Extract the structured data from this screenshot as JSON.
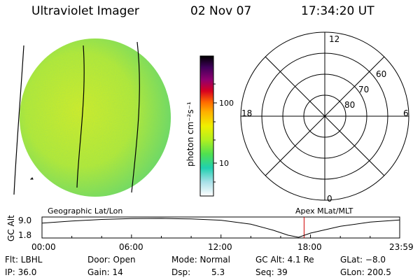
{
  "header": {
    "title": "Ultraviolet Imager",
    "date": "02 Nov 07",
    "time": "17:34:20 UT"
  },
  "colorbar": {
    "unit_label": "photon cm⁻²s⁻¹",
    "ticks": [
      "100",
      "10"
    ],
    "colors": [
      "#000000",
      "#3a0050",
      "#7a0080",
      "#c00060",
      "#e00000",
      "#ff6a00",
      "#ffd000",
      "#c8f000",
      "#60e060",
      "#20d0c0",
      "#b0e0e8",
      "#ffffff"
    ]
  },
  "polar_plot": {
    "mlt_labels": {
      "top": "12",
      "left": "18",
      "right": "6",
      "bottom": "0"
    },
    "lat_labels": [
      "60",
      "70",
      "80"
    ]
  },
  "timeline": {
    "left_label": "Geographic Lat/Lon",
    "right_label": "Apex MLat/MLT",
    "ylabel": "GC Alt",
    "y_ticks": [
      "9.0",
      "1.8"
    ],
    "x_ticks": [
      "00:00",
      "06:00",
      "12:00",
      "18:00",
      "23:59"
    ],
    "marker_time_hours": 17.57
  },
  "footer": {
    "row1": [
      "Flt: LBHL",
      "Door: Open",
      "Mode: Normal",
      "GC Alt: 4.1 Re",
      "GLat: −8.0"
    ],
    "row2": [
      "IP: 36.0",
      "Gain: 14",
      "Dsp:",
      "5.3",
      "Seq: 39",
      "GLon: 200.5"
    ]
  },
  "chart_data": {
    "type": "line",
    "xlabel": "",
    "ylabel": "GC Alt",
    "x": [
      0,
      2,
      4,
      6,
      8,
      10,
      12,
      14,
      15.5,
      16.5,
      17.2,
      18,
      20,
      22,
      23.98
    ],
    "y": [
      7.2,
      8.0,
      8.6,
      8.95,
      9.0,
      8.8,
      8.3,
      6.8,
      4.5,
      2.6,
      1.8,
      3.4,
      6.0,
      7.6,
      8.4
    ],
    "xlim": [
      0,
      23.98
    ],
    "ylim": [
      1.8,
      9.0
    ],
    "grid": false
  }
}
